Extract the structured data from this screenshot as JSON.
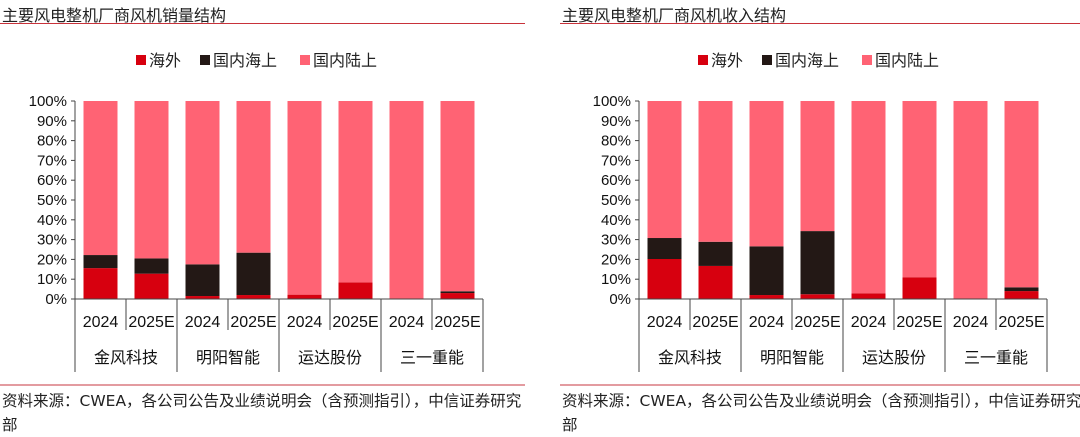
{
  "chart_data": [
    {
      "type": "bar",
      "stacked": true,
      "title": "主要风电整机厂商风机销量结构",
      "legend_position": "top",
      "groups": [
        "金风科技",
        "明阳智能",
        "运达股份",
        "三一重能"
      ],
      "categories": [
        "2024",
        "2025E",
        "2024",
        "2025E",
        "2024",
        "2025E",
        "2024",
        "2025E"
      ],
      "ylim": [
        0,
        100
      ],
      "yticks": [
        "0%",
        "10%",
        "20%",
        "30%",
        "40%",
        "50%",
        "60%",
        "70%",
        "80%",
        "90%",
        "100%"
      ],
      "series": [
        {
          "name": "海外",
          "color": "#d7000f",
          "values": [
            15.6,
            12.8,
            1.5,
            2.0,
            2.2,
            8.4,
            0,
            3.0
          ]
        },
        {
          "name": "国内海上",
          "color": "#231815",
          "values": [
            6.6,
            7.7,
            16.0,
            21.4,
            0,
            0,
            0,
            0.9
          ]
        },
        {
          "name": "国内陆上",
          "color": "#ff6374",
          "values": [
            77.8,
            79.5,
            82.5,
            76.6,
            97.8,
            91.6,
            100,
            96.1
          ]
        }
      ],
      "source": "资料来源：CWEA，各公司公告及业绩说明会（含预测指引），中信证券研究部"
    },
    {
      "type": "bar",
      "stacked": true,
      "title": "主要风电整机厂商风机收入结构",
      "legend_position": "top",
      "groups": [
        "金风科技",
        "明阳智能",
        "运达股份",
        "三一重能"
      ],
      "categories": [
        "2024",
        "2025E",
        "2024",
        "2025E",
        "2024",
        "2025E",
        "2024",
        "2025E"
      ],
      "ylim": [
        0,
        100
      ],
      "yticks": [
        "0%",
        "10%",
        "20%",
        "30%",
        "40%",
        "50%",
        "60%",
        "70%",
        "80%",
        "90%",
        "100%"
      ],
      "series": [
        {
          "name": "海外",
          "color": "#d7000f",
          "values": [
            20.2,
            16.7,
            2.0,
            2.4,
            2.9,
            11.0,
            0,
            4.0
          ]
        },
        {
          "name": "国内海上",
          "color": "#231815",
          "values": [
            10.6,
            12.2,
            24.6,
            31.9,
            0,
            0,
            0,
            1.9
          ]
        },
        {
          "name": "国内陆上",
          "color": "#ff6374",
          "values": [
            69.2,
            71.1,
            73.4,
            65.7,
            97.1,
            89.0,
            100,
            94.1
          ]
        }
      ],
      "source": "资料来源：CWEA，各公司公告及业绩说明会（含预测指引），中信证券研究部"
    }
  ]
}
